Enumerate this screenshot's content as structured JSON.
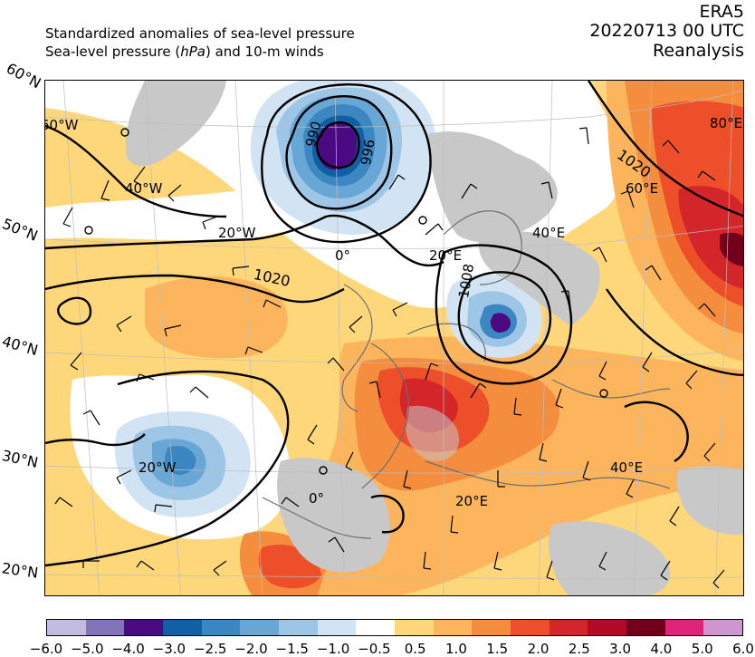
{
  "header": {
    "title_line1": "Standardized anomalies of sea-level pressure",
    "title_line2_pre": "Sea-level pressure (",
    "title_line2_unit": "hPa",
    "title_line2_post": ") and 10-m winds",
    "source": "ERA5",
    "datetime": "20220713 00 UTC",
    "product": "Reanalysis"
  },
  "map": {
    "lat_labels_left": [
      "60°N",
      "50°N",
      "40°N",
      "30°N",
      "20°N"
    ],
    "graticule_labels": [
      "60°W",
      "40°W",
      "20°W",
      "0°",
      "20°E",
      "40°E",
      "60°E",
      "80°E",
      "20°W",
      "0°",
      "20°E",
      "40°E"
    ],
    "isobar_labels": [
      "990",
      "996",
      "1020",
      "1020",
      "1008"
    ],
    "colors": {
      "land_gray": "#c8c8c8",
      "isobar": "#000000",
      "coastline": "#6e6e6e"
    }
  },
  "colorbar": {
    "ticks": [
      "−6.0",
      "−5.0",
      "−4.0",
      "−3.0",
      "−2.5",
      "−2.0",
      "−1.5",
      "−1.0",
      "−0.5",
      "0.5",
      "1.0",
      "1.5",
      "2.0",
      "2.5",
      "3.0",
      "4.0",
      "5.0",
      "6.0"
    ],
    "colors": [
      "#c2bde0",
      "#8373bb",
      "#4b0a82",
      "#1160a5",
      "#3c86c1",
      "#68a6d5",
      "#9cc5e6",
      "#d2e3f3",
      "#ffffff",
      "#fed77a",
      "#fdb55d",
      "#f58d3e",
      "#ec4f2a",
      "#d3252a",
      "#b30a28",
      "#72001c",
      "#e0247c",
      "#cf96cf"
    ]
  }
}
